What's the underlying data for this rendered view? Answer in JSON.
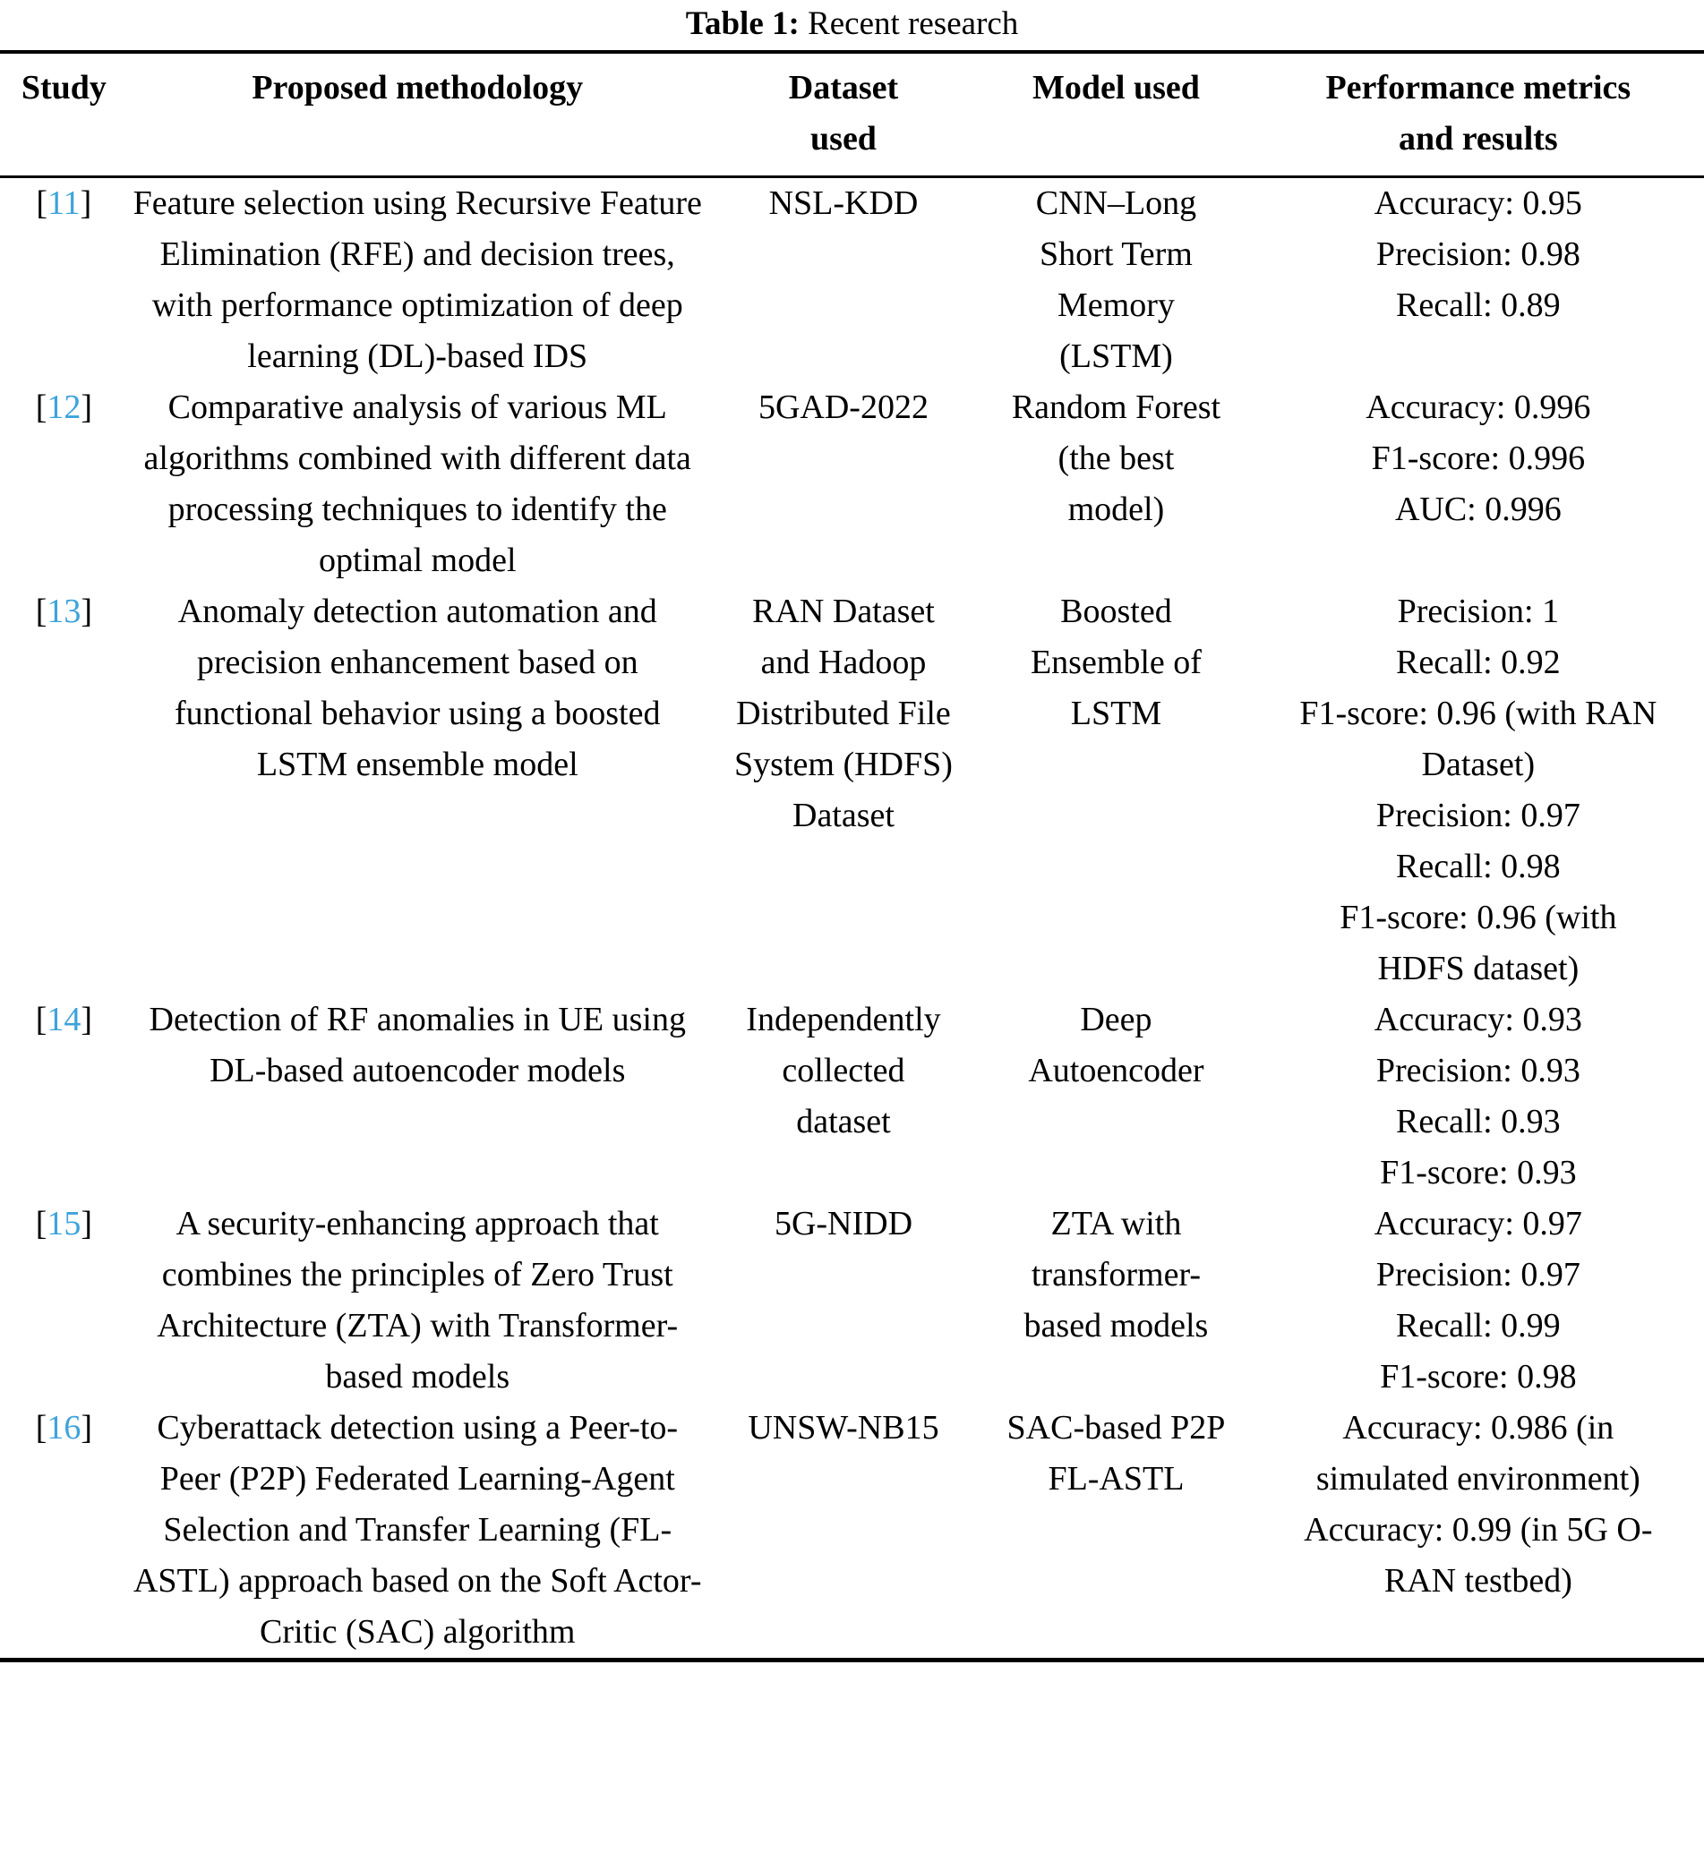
{
  "caption": {
    "label": "Table 1:",
    "text": "Recent research"
  },
  "citation": {
    "open": "[",
    "close": "]"
  },
  "colors": {
    "reference_blue": "#3DA3DB",
    "text": "#000000",
    "background": "#ffffff"
  },
  "table": {
    "headers": {
      "study": "Study",
      "methodology": "Proposed methodology",
      "dataset": [
        "Dataset",
        "used"
      ],
      "model": "Model used",
      "performance": [
        "Performance metrics",
        "and results"
      ]
    },
    "rows": [
      {
        "ref": "11",
        "methodology": "Feature selection using Recursive Feature Elimination (RFE) and decision trees, with performance optimization of deep learning (DL)-based IDS",
        "dataset": "NSL-KDD",
        "model": "CNN–Long Short Term Memory (LSTM)",
        "metrics": [
          "Accuracy: 0.95",
          "Precision: 0.98",
          "Recall: 0.89"
        ]
      },
      {
        "ref": "12",
        "methodology": "Comparative analysis of various ML algorithms combined with different data processing techniques to identify the optimal model",
        "dataset": "5GAD-2022",
        "model": "Random Forest (the best model)",
        "metrics": [
          "Accuracy: 0.996",
          "F1-score: 0.996",
          "AUC: 0.996"
        ]
      },
      {
        "ref": "13",
        "methodology": "Anomaly detection automation and precision enhancement based on functional behavior using a boosted LSTM ensemble model",
        "dataset": "RAN Dataset and Hadoop Distributed File System (HDFS) Dataset",
        "model": "Boosted Ensemble of LSTM",
        "metrics": [
          "Precision: 1",
          "Recall: 0.92",
          "F1-score: 0.96 (with RAN Dataset)",
          "Precision: 0.97",
          "Recall: 0.98",
          "F1-score: 0.96 (with HDFS dataset)"
        ]
      },
      {
        "ref": "14",
        "methodology": "Detection of RF anomalies in UE using DL-based autoencoder models",
        "dataset": "Independently collected dataset",
        "model": "Deep Autoencoder",
        "metrics": [
          "Accuracy: 0.93",
          "Precision: 0.93",
          "Recall: 0.93",
          "F1-score: 0.93"
        ]
      },
      {
        "ref": "15",
        "methodology": "A security-enhancing approach that combines the principles of Zero Trust Architecture (ZTA) with Transformer-based models",
        "dataset": "5G-NIDD",
        "model": "ZTA with transformer-based models",
        "metrics": [
          "Accuracy: 0.97",
          "Precision: 0.97",
          "Recall: 0.99",
          "F1-score: 0.98"
        ]
      },
      {
        "ref": "16",
        "methodology": "Cyberattack detection using a Peer-to-Peer (P2P) Federated Learning-Agent Selection and Transfer Learning (FL-ASTL) approach based on the Soft Actor-Critic (SAC) algorithm",
        "dataset": "UNSW-NB15",
        "model": "SAC-based P2P FL-ASTL",
        "metrics": [
          "Accuracy: 0.986 (in simulated environment)",
          "Accuracy: 0.99 (in 5G O-RAN testbed)"
        ]
      }
    ]
  }
}
